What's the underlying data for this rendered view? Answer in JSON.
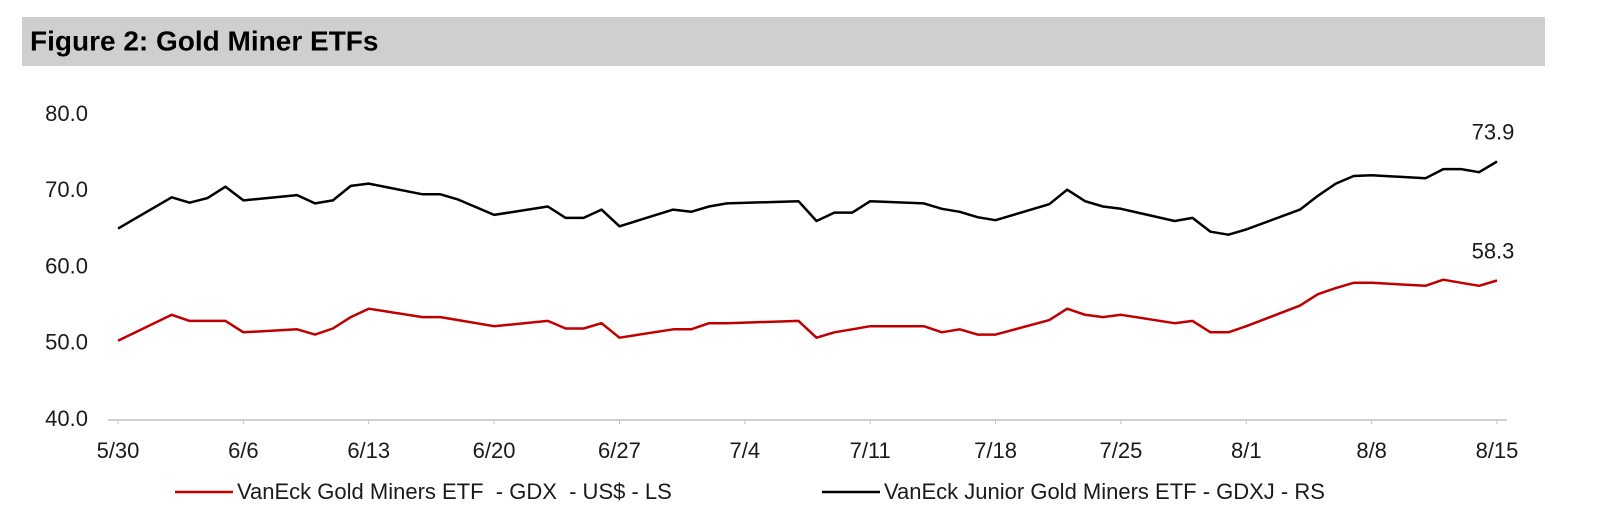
{
  "chart_data": {
    "type": "line",
    "title": "Figure 2: Gold Miner ETFs",
    "x": [
      "5/30",
      "6/2",
      "6/3",
      "6/4",
      "6/5",
      "6/6",
      "6/9",
      "6/10",
      "6/11",
      "6/12",
      "6/13",
      "6/16",
      "6/17",
      "6/18",
      "6/20",
      "6/23",
      "6/24",
      "6/25",
      "6/26",
      "6/27",
      "6/30",
      "7/1",
      "7/2",
      "7/3",
      "7/7",
      "7/8",
      "7/9",
      "7/10",
      "7/11",
      "7/14",
      "7/15",
      "7/16",
      "7/17",
      "7/18",
      "7/21",
      "7/22",
      "7/23",
      "7/24",
      "7/25",
      "7/28",
      "7/29",
      "7/30",
      "7/31",
      "8/1",
      "8/4",
      "8/5",
      "8/6",
      "8/7",
      "8/8",
      "8/11",
      "8/12",
      "8/13",
      "8/14",
      "8/15"
    ],
    "series": [
      {
        "name": "VanEck Gold Miners ETF  - GDX  - US$ - LS",
        "color": "#c00000",
        "values": [
          50.4,
          53.8,
          53.0,
          53.0,
          53.0,
          51.5,
          51.9,
          51.2,
          52.0,
          53.5,
          54.6,
          53.5,
          53.5,
          53.1,
          52.3,
          53.0,
          52.0,
          52.0,
          52.7,
          50.8,
          51.9,
          51.9,
          52.7,
          52.7,
          53.0,
          50.8,
          51.5,
          51.9,
          52.3,
          52.3,
          51.5,
          51.9,
          51.2,
          51.2,
          53.1,
          54.6,
          53.8,
          53.5,
          53.8,
          52.7,
          53.0,
          51.5,
          51.5,
          52.3,
          55.0,
          56.5,
          57.3,
          58.0,
          58.0,
          57.6,
          58.4,
          58.0,
          57.6,
          58.3
        ]
      },
      {
        "name": "VanEck Junior Gold Miners ETF - GDXJ - RS",
        "color": "#000000",
        "values": [
          65.1,
          69.2,
          68.5,
          69.1,
          70.6,
          68.8,
          69.5,
          68.4,
          68.8,
          70.7,
          71.0,
          69.6,
          69.6,
          68.9,
          66.9,
          68.0,
          66.5,
          66.5,
          67.6,
          65.4,
          67.6,
          67.3,
          68.0,
          68.4,
          68.7,
          66.1,
          67.2,
          67.2,
          68.7,
          68.4,
          67.7,
          67.3,
          66.6,
          66.2,
          68.3,
          70.2,
          68.7,
          68.0,
          67.7,
          66.1,
          66.5,
          64.7,
          64.3,
          65.0,
          67.6,
          69.4,
          71.0,
          72.0,
          72.1,
          71.7,
          72.9,
          72.9,
          72.5,
          73.9
        ]
      }
    ],
    "xticks": [
      "5/30",
      "6/6",
      "6/13",
      "6/20",
      "6/27",
      "7/4",
      "7/11",
      "7/18",
      "7/25",
      "8/1",
      "8/8",
      "8/15"
    ],
    "ylim": [
      40,
      80
    ],
    "yticks": [
      {
        "value": 40,
        "label": "40.0"
      },
      {
        "value": 50,
        "label": "50.0"
      },
      {
        "value": 60,
        "label": "60.0"
      },
      {
        "value": 70,
        "label": "70.0"
      },
      {
        "value": 80,
        "label": "80.0"
      }
    ],
    "grid": false
  }
}
